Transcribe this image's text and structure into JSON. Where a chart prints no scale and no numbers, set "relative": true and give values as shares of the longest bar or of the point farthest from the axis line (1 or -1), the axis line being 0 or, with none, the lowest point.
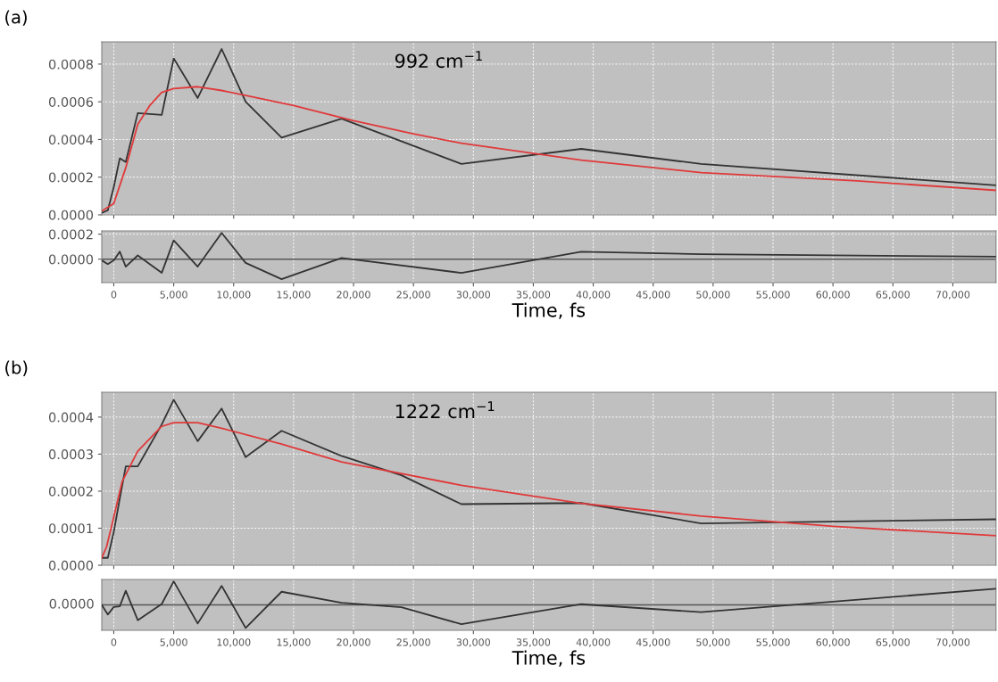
{
  "chart_data": [
    {
      "type": "line",
      "title": "(a)",
      "annotations": [
        "992 cm$^{−1}$"
      ],
      "xlim": [
        -1000,
        73600
      ],
      "ylim": [
        0,
        0.000918
      ],
      "xticks": [
        {
          "value": 0,
          "label": null
        },
        {
          "value": 5000,
          "label": null
        },
        {
          "value": 10000,
          "label": null
        },
        {
          "value": 15000,
          "label": null
        },
        {
          "value": 20000,
          "label": null
        },
        {
          "value": 25000,
          "label": null
        },
        {
          "value": 30000,
          "label": null
        },
        {
          "value": 35000,
          "label": null
        },
        {
          "value": 40000,
          "label": null
        },
        {
          "value": 45000,
          "label": null
        },
        {
          "value": 50000,
          "label": null
        },
        {
          "value": 55000,
          "label": null
        },
        {
          "value": 60000,
          "label": null
        },
        {
          "value": 65000,
          "label": null
        },
        {
          "value": 70000,
          "label": null
        }
      ],
      "yticks": [
        {
          "value": 0,
          "label": "0.0000"
        },
        {
          "value": 0.0002,
          "label": "0.0002"
        },
        {
          "value": 0.0004,
          "label": "0.0004"
        },
        {
          "value": 0.0006,
          "label": "0.0006"
        },
        {
          "value": 0.0008,
          "label": "0.0008"
        }
      ],
      "tick_labels": "y",
      "grid": true,
      "series": [
        {
          "color": "#333333",
          "x": [
            -1000,
            -500,
            0,
            500,
            1000,
            2000,
            4000,
            5000,
            7000,
            9000,
            11000,
            14000,
            19000,
            29000,
            39000,
            49000,
            73600
          ],
          "values": [
            1e-05,
            2.4e-05,
            0.000148,
            0.0003,
            0.00028,
            0.00054,
            0.00053,
            0.00083,
            0.00062,
            0.00088,
            0.0006,
            0.00041,
            0.00051,
            0.00027,
            0.00035,
            0.00027,
            0.000157
          ]
        },
        {
          "color": "#e0393a",
          "x": [
            -1000,
            0,
            1000,
            2000,
            3000,
            4000,
            5000,
            7000,
            9000,
            12000,
            15000,
            20000,
            25000,
            29000,
            39000,
            49000,
            62000,
            73600
          ],
          "values": [
            2e-05,
            6e-05,
            0.00025,
            0.00048,
            0.00058,
            0.00065,
            0.00067,
            0.00068,
            0.00066,
            0.00062,
            0.00058,
            0.0005,
            0.00043,
            0.00038,
            0.00029,
            0.000224,
            0.00018,
            0.00013
          ]
        }
      ]
    },
    {
      "type": "line",
      "xlabel": "Time, fs",
      "xlim": [
        -1000,
        73600
      ],
      "ylim": [
        -0.000188,
        0.000226
      ],
      "xticks": [
        0,
        {
          "value": 5000,
          "label": "5,000"
        },
        {
          "value": 10000,
          "label": "10,000"
        },
        {
          "value": 15000,
          "label": "15,000"
        },
        {
          "value": 20000,
          "label": "20,000"
        },
        {
          "value": 25000,
          "label": "25,000"
        },
        {
          "value": 30000,
          "label": "30,000"
        },
        {
          "value": 35000,
          "label": "35,000"
        },
        {
          "value": 40000,
          "label": "40,000"
        },
        {
          "value": 45000,
          "label": "45,000"
        },
        {
          "value": 50000,
          "label": "50,000"
        },
        {
          "value": 55000,
          "label": "55,000"
        },
        {
          "value": 60000,
          "label": "60,000"
        },
        {
          "value": 65000,
          "label": "65,000"
        },
        {
          "value": 70000,
          "label": "70,000"
        }
      ],
      "yticks": [
        {
          "value": 0,
          "label": "0.0000"
        },
        {
          "value": 0.0002,
          "label": "0.0002"
        }
      ],
      "grid": true,
      "ref_lines": [
        {
          "axis": "y",
          "value": 0,
          "color": "#555555"
        }
      ],
      "series": [
        {
          "color": "#333333",
          "x": [
            -1000,
            -500,
            0,
            500,
            1000,
            2000,
            4000,
            5000,
            7000,
            9000,
            11000,
            14000,
            19000,
            29000,
            39000,
            49000,
            73600
          ],
          "values": [
            -1e-05,
            -4e-05,
            -1e-05,
            6e-05,
            -6e-05,
            3e-05,
            -0.00011,
            0.00015,
            -6e-05,
            0.00021,
            -3e-05,
            -0.00016,
            1e-05,
            -0.00011,
            6e-05,
            4e-05,
            2e-05
          ]
        }
      ]
    },
    {
      "type": "line",
      "title": "(b)",
      "annotations": [
        "1222 cm$^{−1}$"
      ],
      "xlim": [
        -1000,
        73600
      ],
      "ylim": [
        0,
        0.000467
      ],
      "xticks": [
        {
          "value": 0,
          "label": null
        },
        {
          "value": 5000,
          "label": null
        },
        {
          "value": 10000,
          "label": null
        },
        {
          "value": 15000,
          "label": null
        },
        {
          "value": 20000,
          "label": null
        },
        {
          "value": 25000,
          "label": null
        },
        {
          "value": 30000,
          "label": null
        },
        {
          "value": 35000,
          "label": null
        },
        {
          "value": 40000,
          "label": null
        },
        {
          "value": 45000,
          "label": null
        },
        {
          "value": 50000,
          "label": null
        },
        {
          "value": 55000,
          "label": null
        },
        {
          "value": 60000,
          "label": null
        },
        {
          "value": 65000,
          "label": null
        },
        {
          "value": 70000,
          "label": null
        }
      ],
      "yticks": [
        {
          "value": 0,
          "label": "0.0000"
        },
        {
          "value": 0.0001,
          "label": "0.0001"
        },
        {
          "value": 0.0002,
          "label": "0.0002"
        },
        {
          "value": 0.0003,
          "label": "0.0003"
        },
        {
          "value": 0.0004,
          "label": "0.0004"
        }
      ],
      "tick_labels": "y",
      "grid": true,
      "series": [
        {
          "color": "#333333",
          "x": [
            -1000,
            -500,
            0,
            500,
            1000,
            2000,
            4000,
            5000,
            7000,
            9000,
            11000,
            14000,
            19000,
            24000,
            29000,
            39000,
            49000,
            73600
          ],
          "values": [
            2e-05,
            2e-05,
            9e-05,
            0.00018,
            0.000267,
            0.000267,
            0.00038,
            0.000447,
            0.000335,
            0.000423,
            0.000292,
            0.000363,
            0.000295,
            0.000243,
            0.000165,
            0.000168,
            0.000113,
            0.000124
          ]
        },
        {
          "color": "#e0393a",
          "x": [
            -1000,
            -600,
            0,
            700,
            2000,
            4000,
            5000,
            7000,
            9000,
            14000,
            19000,
            29000,
            39000,
            49000,
            60000,
            73600
          ],
          "values": [
            2e-05,
            5e-05,
            0.00013,
            0.000226,
            0.000308,
            0.000375,
            0.000385,
            0.000385,
            0.00037,
            0.000327,
            0.000279,
            0.000216,
            0.000167,
            0.000133,
            0.000105,
            8e-05
          ]
        }
      ]
    },
    {
      "type": "line",
      "xlabel": "Time, fs",
      "relative": true,
      "xlim": [
        -1000,
        73600
      ],
      "xticks": [
        0,
        {
          "value": 5000,
          "label": "5,000"
        },
        {
          "value": 10000,
          "label": "10,000"
        },
        {
          "value": 15000,
          "label": "15,000"
        },
        {
          "value": 20000,
          "label": "20,000"
        },
        {
          "value": 25000,
          "label": "25,000"
        },
        {
          "value": 30000,
          "label": "30,000"
        },
        {
          "value": 35000,
          "label": "35,000"
        },
        {
          "value": 40000,
          "label": "40,000"
        },
        {
          "value": 45000,
          "label": "45,000"
        },
        {
          "value": 50000,
          "label": "50,000"
        },
        {
          "value": 55000,
          "label": "55,000"
        },
        {
          "value": 60000,
          "label": "60,000"
        },
        {
          "value": 65000,
          "label": "65,000"
        },
        {
          "value": 70000,
          "label": "70,000"
        }
      ],
      "annotations": [
        "0.0000"
      ],
      "grid": "x",
      "ref_lines": [
        {
          "axis": "y",
          "value": 0,
          "color": "#555555"
        }
      ],
      "series": [
        {
          "color": "#333333",
          "x": [
            -1000,
            -500,
            0,
            500,
            1000,
            2000,
            4000,
            5000,
            7000,
            9000,
            11000,
            14000,
            19000,
            24000,
            29000,
            39000,
            49000,
            73600
          ],
          "values": [
            0,
            -0.41,
            -0.09,
            -0.06,
            0.6,
            -0.65,
            0.04,
            1.0,
            -0.79,
            0.81,
            -0.98,
            0.56,
            0.09,
            -0.1,
            -0.82,
            0.03,
            -0.31,
            0.69
          ]
        }
      ]
    }
  ]
}
